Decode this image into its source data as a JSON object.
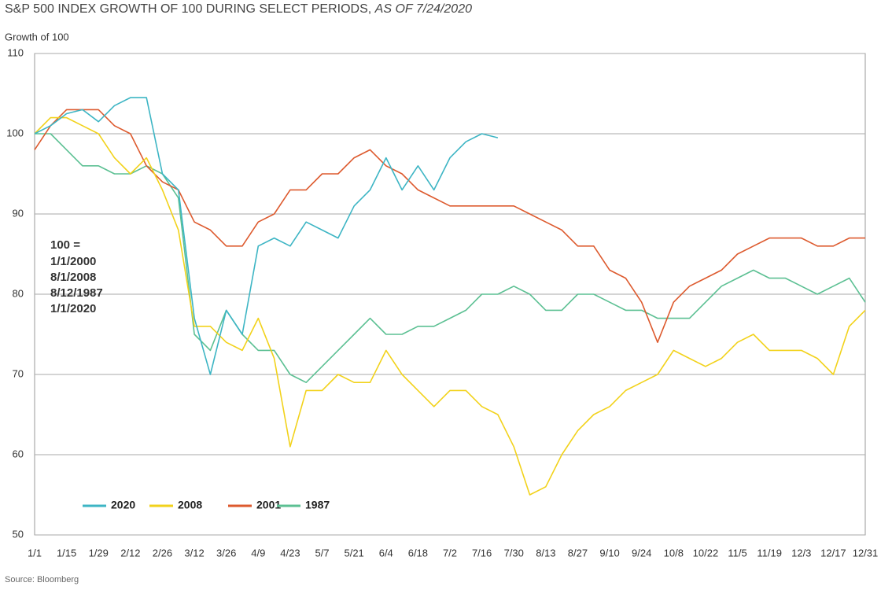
{
  "chart_data": {
    "type": "line",
    "title": "S&P 500 INDEX GROWTH OF 100 DURING SELECT PERIODS,",
    "subtitle": "AS OF 7/24/2020",
    "y_label": "Growth of 100",
    "source": "Source: Bloomberg",
    "categories": [
      "1/1",
      null,
      "1/15",
      null,
      "1/29",
      null,
      "2/12",
      null,
      "2/26",
      null,
      "3/12",
      null,
      "3/26",
      null,
      "4/9",
      null,
      "4/23",
      null,
      "5/7",
      null,
      "5/21",
      null,
      "6/4",
      null,
      "6/18",
      null,
      "7/2",
      null,
      "7/16",
      null,
      "7/30",
      null,
      "8/13",
      null,
      "8/27",
      null,
      "9/10",
      null,
      "9/24",
      null,
      "10/8",
      null,
      "10/22",
      null,
      "11/5",
      null,
      "11/19",
      null,
      "12/3",
      null,
      "12/17",
      null,
      "12/31"
    ],
    "ylim": [
      50,
      110
    ],
    "yticks": [
      50,
      60,
      70,
      80,
      90,
      100,
      110
    ],
    "grid": true,
    "series": [
      {
        "name": "2020",
        "color": "#3db5c4",
        "values": [
          100,
          101,
          102.5,
          103,
          101.5,
          103.5,
          104.5,
          104.5,
          95,
          93,
          77,
          70,
          78,
          75,
          86,
          87,
          86,
          89,
          88,
          87,
          91,
          93,
          97,
          93,
          96,
          93,
          97,
          99,
          100,
          99.5,
          null,
          null,
          null,
          null,
          null,
          null,
          null,
          null,
          null,
          null,
          null,
          null,
          null,
          null,
          null,
          null,
          null,
          null,
          null,
          null,
          null,
          null,
          null
        ]
      },
      {
        "name": "2008",
        "color": "#f2d21b",
        "values": [
          100,
          102,
          102,
          101,
          100,
          97,
          95,
          97,
          93,
          88,
          76,
          76,
          74,
          73,
          77,
          72,
          61,
          68,
          68,
          70,
          69,
          69,
          73,
          70,
          68,
          66,
          68,
          68,
          66,
          65,
          61,
          55,
          56,
          60,
          63,
          65,
          66,
          68,
          69,
          70,
          73,
          72,
          71,
          72,
          74,
          75,
          73,
          73,
          73,
          72,
          70,
          76,
          78
        ]
      },
      {
        "name": "2001",
        "color": "#dd5a2e",
        "values": [
          98,
          101,
          103,
          103,
          103,
          101,
          100,
          96,
          94,
          93,
          89,
          88,
          86,
          86,
          89,
          90,
          93,
          93,
          95,
          95,
          97,
          98,
          96,
          95,
          93,
          92,
          91,
          91,
          91,
          91,
          91,
          90,
          89,
          88,
          86,
          86,
          83,
          82,
          79,
          74,
          79,
          81,
          82,
          83,
          85,
          86,
          87,
          87,
          87,
          86,
          86,
          87,
          87
        ]
      },
      {
        "name": "1987",
        "color": "#5cc093",
        "values": [
          100,
          100,
          98,
          96,
          96,
          95,
          95,
          96,
          95,
          92,
          75,
          73,
          78,
          75,
          73,
          73,
          70,
          69,
          71,
          73,
          75,
          77,
          75,
          75,
          76,
          76,
          77,
          78,
          80,
          80,
          81,
          80,
          78,
          78,
          80,
          80,
          79,
          78,
          78,
          77,
          77,
          77,
          79,
          81,
          82,
          83,
          82,
          82,
          81,
          80,
          81,
          82,
          79
        ]
      }
    ],
    "annotation": {
      "heading": "100 =",
      "items": [
        {
          "text": "1/1/2000",
          "color": "#dd5a2e"
        },
        {
          "text": "8/1/2008",
          "color": "#f2d21b"
        },
        {
          "text": "8/12/1987",
          "color": "#5cc093"
        },
        {
          "text": "1/1/2020",
          "color": "#3db5c4"
        }
      ]
    }
  }
}
